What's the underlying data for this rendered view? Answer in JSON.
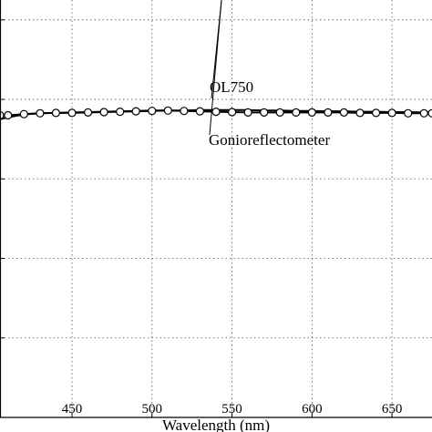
{
  "chart_data": {
    "type": "line",
    "xlabel": "Wavelength (nm)",
    "ylabel": "",
    "title": "",
    "xlim": [
      405,
      675
    ],
    "ylim": [
      0,
      1.05
    ],
    "grid": true,
    "x_ticks": [
      450,
      500,
      550,
      600,
      650
    ],
    "y_ticks": [
      0,
      0.2,
      0.4,
      0.6,
      0.8,
      1.0
    ],
    "annotations": [
      {
        "text": "OL750",
        "target_series": 0,
        "target_x": 548
      },
      {
        "text": "Gonioreflectometer",
        "target_series": 1,
        "target_x": 548
      }
    ],
    "series": [
      {
        "name": "OL750",
        "marker": "none",
        "x": [
          405,
          410,
          420,
          430,
          440,
          450,
          460,
          470,
          480,
          490,
          500,
          510,
          520,
          530,
          540,
          550,
          560,
          570,
          580,
          590,
          600,
          610,
          620,
          630,
          640,
          650,
          660,
          670,
          675
        ],
        "values": [
          0.75,
          0.755,
          0.762,
          0.765,
          0.766,
          0.767,
          0.768,
          0.769,
          0.77,
          0.771,
          0.772,
          0.772,
          0.772,
          0.773,
          0.773,
          0.773,
          0.773,
          0.772,
          0.772,
          0.771,
          0.771,
          0.77,
          0.77,
          0.769,
          0.769,
          0.768,
          0.768,
          0.767,
          0.767
        ]
      },
      {
        "name": "Gonioreflectometer",
        "marker": "circle",
        "x": [
          405,
          410,
          420,
          430,
          440,
          450,
          460,
          470,
          480,
          490,
          500,
          510,
          520,
          530,
          540,
          550,
          560,
          570,
          580,
          590,
          600,
          610,
          620,
          630,
          640,
          650,
          660,
          670,
          675
        ],
        "values": [
          0.76,
          0.76,
          0.763,
          0.765,
          0.766,
          0.766,
          0.767,
          0.768,
          0.769,
          0.77,
          0.771,
          0.772,
          0.771,
          0.77,
          0.769,
          0.768,
          0.767,
          0.767,
          0.767,
          0.767,
          0.767,
          0.767,
          0.767,
          0.766,
          0.766,
          0.766,
          0.765,
          0.765,
          0.765
        ]
      }
    ]
  }
}
